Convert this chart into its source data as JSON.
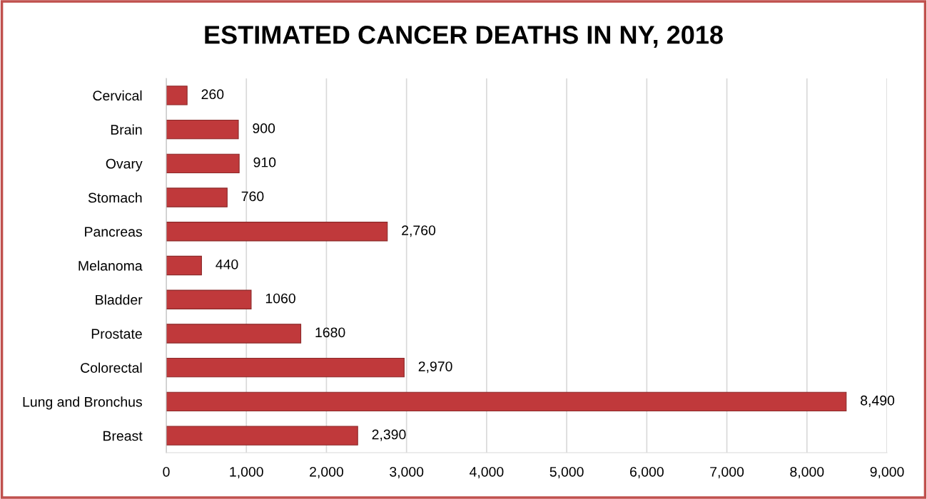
{
  "chart_data": {
    "type": "bar",
    "orientation": "horizontal",
    "title": "ESTIMATED CANCER DEATHS IN NY, 2018",
    "categories": [
      "Cervical",
      "Brain",
      "Ovary",
      "Stomach",
      "Pancreas",
      "Melanoma",
      "Bladder",
      "Prostate",
      "Colorectal",
      "Lung and Bronchus",
      "Breast"
    ],
    "values": [
      260,
      900,
      910,
      760,
      2760,
      440,
      1060,
      1680,
      2970,
      8490,
      2390
    ],
    "value_labels": [
      "260",
      "900",
      "910",
      "760",
      "2,760",
      "440",
      "1060",
      "1680",
      "2,970",
      "8,490",
      "2,390"
    ],
    "color": "#c0393b",
    "xlim": [
      0,
      9000
    ],
    "xticks": [
      0,
      {
        "value": 1000,
        "label": "1,000"
      },
      {
        "value": 2000,
        "label": "2,000"
      },
      {
        "value": 3000,
        "label": "3,000"
      },
      {
        "value": 4000,
        "label": "4,000"
      },
      {
        "value": 5000,
        "label": "5,000"
      },
      {
        "value": 6000,
        "label": "6,000"
      },
      {
        "value": 7000,
        "label": "7,000"
      },
      {
        "value": 8000,
        "label": "8,000"
      },
      {
        "value": 9000,
        "label": "9,000"
      }
    ],
    "grid": "x",
    "legend": false
  }
}
